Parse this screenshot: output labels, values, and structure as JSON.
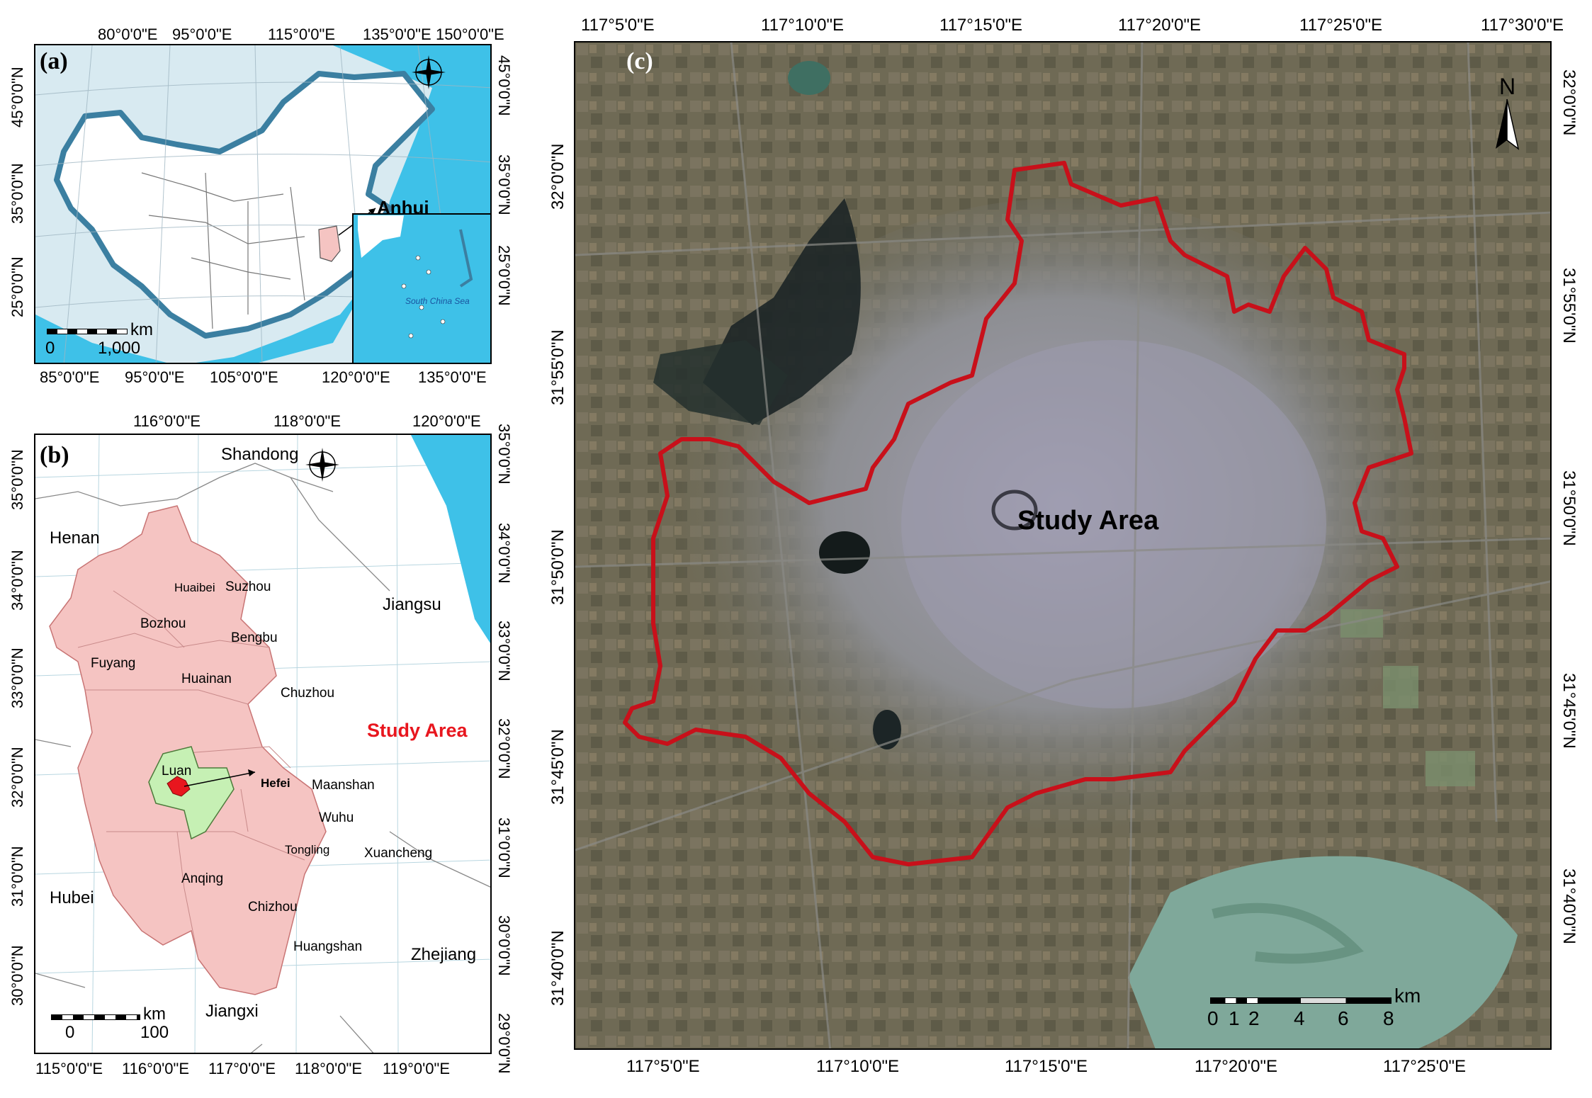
{
  "colors": {
    "sea": "#3ec1e8",
    "land_bg": "#d8eaf1",
    "china_fill": "#ffffff",
    "anhui_fill": "#f5c4c2",
    "hefei_fill": "#c6f0b4",
    "study_area_fill": "#e8161e",
    "boundary_red": "#c8101a",
    "satellite_base": "#6b6b5e",
    "lake": "#7fa89a"
  },
  "panel_a": {
    "label": "(a)",
    "top_ticks": [
      "80°0'0\"E",
      "95°0'0\"E",
      "115°0'0\"E",
      "135°0'0\"E",
      "150°0'0\"E"
    ],
    "bottom_ticks": [
      "85°0'0\"E",
      "95°0'0\"E",
      "105°0'0\"E",
      "120°0'0\"E",
      "135°0'0\"E"
    ],
    "left_ticks": [
      "45°0'0\"N",
      "35°0'0\"N",
      "25°0'0\"N"
    ],
    "right_ticks": [
      "45°0'0\"N",
      "35°0'0\"N",
      "25°0'0\"N"
    ],
    "callout": "Anhui",
    "inset_label": "South China Sea",
    "scale_unit": "km",
    "scale_min": "0",
    "scale_max": "1,000"
  },
  "panel_b": {
    "label": "(b)",
    "top_ticks": [
      "116°0'0\"E",
      "118°0'0\"E",
      "120°0'0\"E"
    ],
    "bottom_ticks": [
      "115°0'0\"E",
      "116°0'0\"E",
      "117°0'0\"E",
      "118°0'0\"E",
      "119°0'0\"E"
    ],
    "left_ticks": [
      "35°0'0\"N",
      "34°0'0\"N",
      "33°0'0\"N",
      "32°0'0\"N",
      "31°0'0\"N",
      "30°0'0\"N"
    ],
    "right_ticks": [
      "35°0'0\"N",
      "34°0'0\"N",
      "33°0'0\"N",
      "32°0'0\"N",
      "31°0'0\"N",
      "30°0'0\"N",
      "29°0'0\"N"
    ],
    "provinces": [
      "Shandong",
      "Henan",
      "Jiangsu",
      "Hubei",
      "Zhejiang",
      "Jiangxi"
    ],
    "cities": [
      "Huaibei",
      "Suzhou",
      "Bozhou",
      "Bengbu",
      "Fuyang",
      "Huainan",
      "Chuzhou",
      "Luan",
      "Hefei",
      "Maanshan",
      "Wuhu",
      "Tongling",
      "Xuancheng",
      "Anqing",
      "Chizhou",
      "Huangshan"
    ],
    "study_area_label": "Study Area",
    "scale_unit": "km",
    "scale_min": "0",
    "scale_max": "100"
  },
  "panel_c": {
    "label": "(c)",
    "top_ticks": [
      "117°5'0\"E",
      "117°10'0\"E",
      "117°15'0\"E",
      "117°20'0\"E",
      "117°25'0\"E",
      "117°30'0\"E"
    ],
    "bottom_ticks": [
      "117°5'0\"E",
      "117°10'0\"E",
      "117°15'0\"E",
      "117°20'0\"E",
      "117°25'0\"E"
    ],
    "left_ticks": [
      "32°0'0\"N",
      "31°55'0\"N",
      "31°50'0\"N",
      "31°45'0\"N",
      "31°40'0\"N"
    ],
    "right_ticks": [
      "32°0'0\"N",
      "31°55'0\"N",
      "31°50'0\"N",
      "31°45'0\"N",
      "31°40'0\"N"
    ],
    "study_area_label": "Study Area",
    "north_label": "N",
    "scale_unit": "km",
    "scale_ticks": [
      "0",
      "1",
      "2",
      "4",
      "6",
      "8"
    ]
  }
}
